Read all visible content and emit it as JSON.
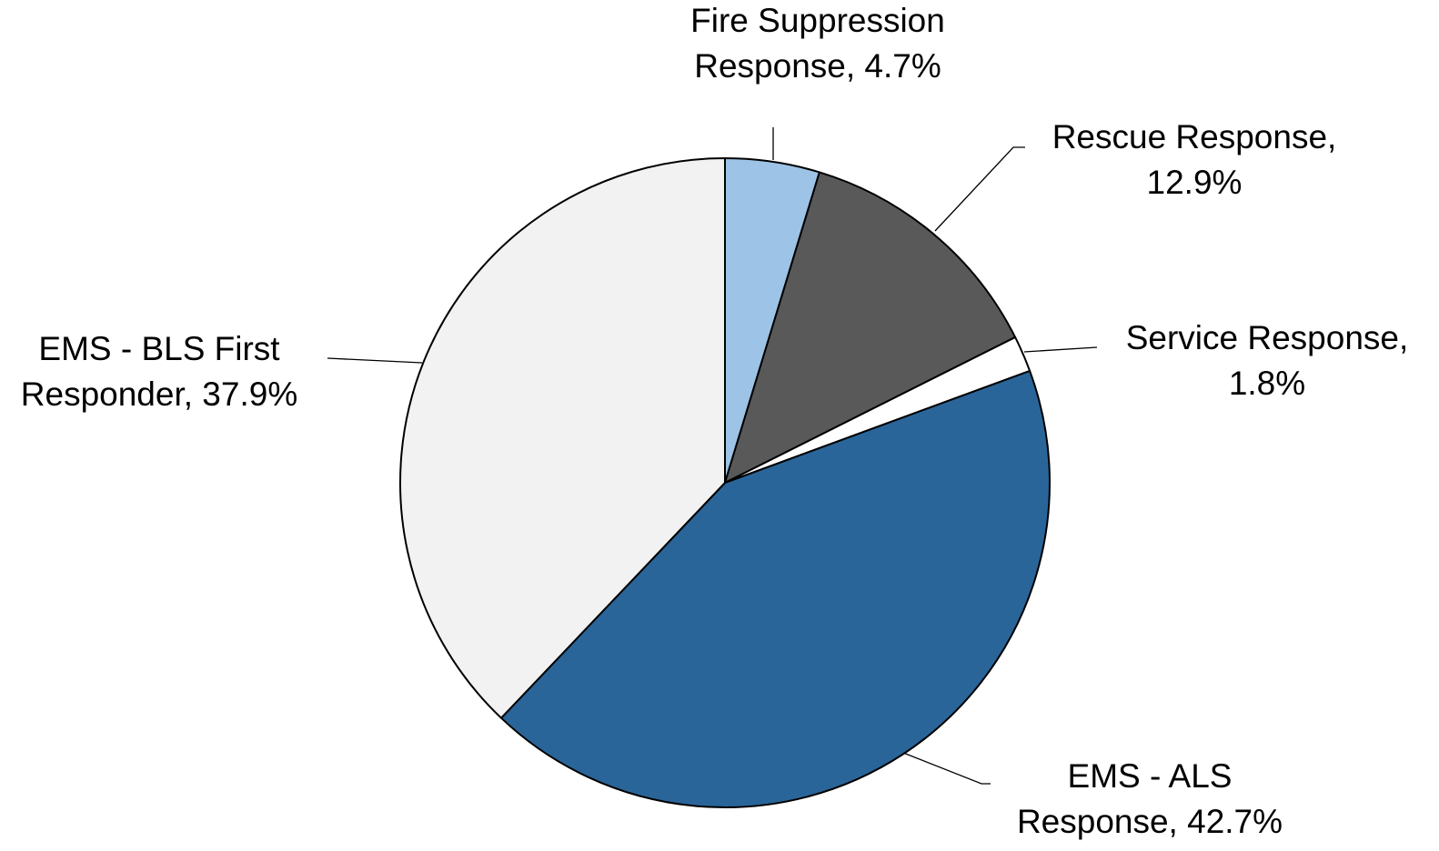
{
  "chart_data": {
    "type": "pie",
    "title": "",
    "start_angle_deg": 0,
    "direction": "clockwise",
    "border_color": "#000000",
    "slices": [
      {
        "label_lines": [
          "Fire Suppression",
          "Response, 4.7%"
        ],
        "label": "Fire Suppression Response",
        "value": 4.7,
        "color": "#9dc3e6"
      },
      {
        "label_lines": [
          "Rescue Response,",
          "12.9%"
        ],
        "label": "Rescue Response",
        "value": 12.9,
        "color": "#595959"
      },
      {
        "label_lines": [
          "Service Response,",
          "1.8%"
        ],
        "label": "Service Response",
        "value": 1.8,
        "color": "#ffffff"
      },
      {
        "label_lines": [
          "EMS - ALS",
          "Response, 42.7%"
        ],
        "label": "EMS - ALS Response",
        "value": 42.7,
        "color": "#2a6599"
      },
      {
        "label_lines": [
          "EMS - BLS First",
          "Responder, 37.9%"
        ],
        "label": "EMS - BLS First Responder",
        "value": 37.9,
        "color": "#f2f2f2"
      }
    ]
  }
}
